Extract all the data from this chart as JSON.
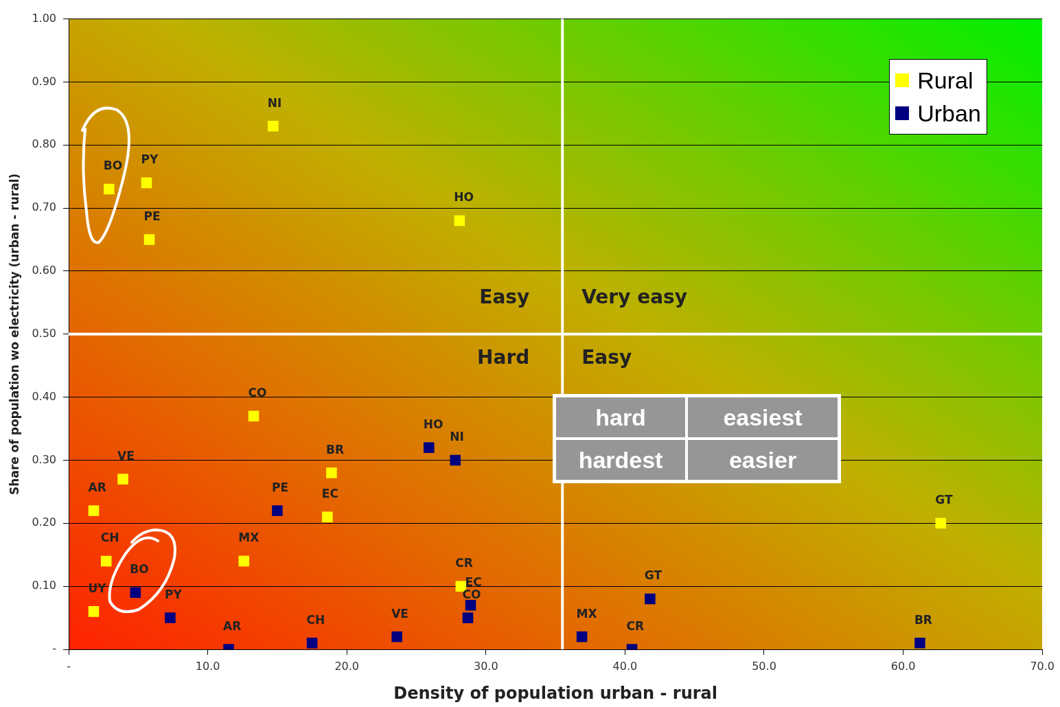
{
  "chart_data": {
    "type": "scatter",
    "xlabel": "Density of population urban - rural",
    "ylabel": "Share of population wo electricity (urban - rural)",
    "xlim": [
      0,
      70
    ],
    "ylim": [
      0,
      1
    ],
    "xticks": [
      {
        "value": 0,
        "label": "-"
      },
      {
        "value": 10,
        "label": "10.0"
      },
      {
        "value": 20,
        "label": "20.0"
      },
      {
        "value": 30,
        "label": "30.0"
      },
      {
        "value": 40,
        "label": "40.0"
      },
      {
        "value": 50,
        "label": "50.0"
      },
      {
        "value": 60,
        "label": "60.0"
      },
      {
        "value": 70,
        "label": "70.0"
      }
    ],
    "yticks": [
      {
        "value": 0,
        "label": "-"
      },
      {
        "value": 0.1,
        "label": "0.10"
      },
      {
        "value": 0.2,
        "label": "0.20"
      },
      {
        "value": 0.3,
        "label": "0.30"
      },
      {
        "value": 0.4,
        "label": "0.40"
      },
      {
        "value": 0.5,
        "label": "0.50"
      },
      {
        "value": 0.6,
        "label": "0.60"
      },
      {
        "value": 0.7,
        "label": "0.70"
      },
      {
        "value": 0.8,
        "label": "0.80"
      },
      {
        "value": 0.9,
        "label": "0.90"
      },
      {
        "value": 1,
        "label": "1.00"
      }
    ],
    "grid": "y",
    "legend": "top right",
    "marker": "square",
    "series": [
      {
        "name": "Rural",
        "color": "#ffff00",
        "x": [
          14.7,
          2.9,
          5.6,
          5.8,
          28.1,
          13.3,
          18.9,
          18.6,
          1.8,
          3.9,
          2.7,
          12.6,
          1.8,
          28.2,
          62.7
        ],
        "values": [
          0.83,
          0.73,
          0.74,
          0.65,
          0.68,
          0.37,
          0.28,
          0.21,
          0.22,
          0.27,
          0.14,
          0.14,
          0.06,
          0.1,
          0.2
        ],
        "value_labels": [
          "NI",
          "BO",
          "PY",
          "PE",
          "HO",
          "CO",
          "BR",
          "EC",
          "AR",
          "VE",
          "CH",
          "MX",
          "UY",
          "CR",
          "GT"
        ]
      },
      {
        "name": "Urban",
        "color": "#000080",
        "x": [
          25.9,
          27.8,
          15.0,
          4.8,
          7.3,
          11.5,
          17.5,
          23.6,
          28.9,
          28.7,
          36.9,
          40.5,
          41.8,
          61.2
        ],
        "values": [
          0.32,
          0.3,
          0.22,
          0.09,
          0.05,
          0.0,
          0.01,
          0.02,
          0.07,
          0.05,
          0.02,
          0.0,
          0.08,
          0.01
        ],
        "value_labels": [
          "HO",
          "NI",
          "PE",
          "BO",
          "PY",
          "AR",
          "CH",
          "VE",
          "EC",
          "CO",
          "MX",
          "CR",
          "GT",
          "BR"
        ]
      }
    ],
    "ref_lines": [
      {
        "axis": "x",
        "value": 35.5,
        "color": "#ffffff"
      },
      {
        "axis": "y",
        "value": 0.5,
        "color": "#ffffff"
      }
    ],
    "annotations": [
      "Easy",
      "Very easy",
      "Hard",
      "Easy",
      "hard",
      "easiest",
      "hardest",
      "easier"
    ]
  }
}
